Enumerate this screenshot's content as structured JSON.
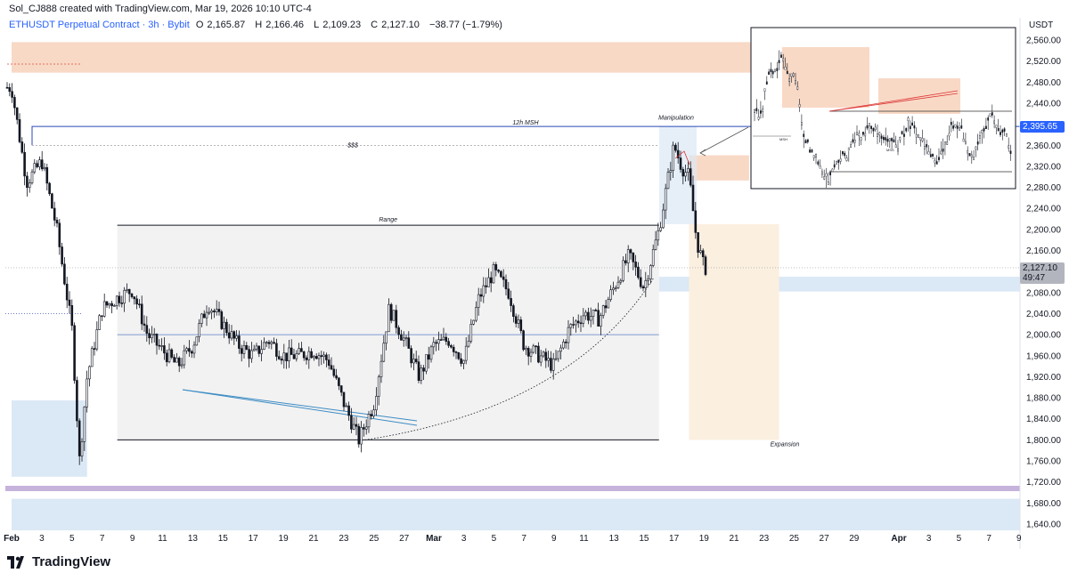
{
  "header": {
    "creator": "Sol_CJ888 created with TradingView.com, Mar 19, 2026 10:10 UTC-4",
    "symbol": "ETHUSDT Perpetual Contract · 3h · Bybit",
    "open_label": "O",
    "open": "2,165.87",
    "high_label": "H",
    "high": "2,166.46",
    "low_label": "L",
    "low": "2,109.23",
    "close_label": "C",
    "close": "2,127.10",
    "change": "−38.77 (−1.79%)"
  },
  "axis": {
    "currency": "USDT",
    "current_price": "2,127.10",
    "countdown": "49:47",
    "msh_price": "2,395.65"
  },
  "brand": {
    "name": "TradingView"
  },
  "colors": {
    "candle": "#131722",
    "supply_zone": "#f8d9c6",
    "demand_zone": "#dbe8f5",
    "range_box": "#f2f2f2",
    "expansion_box": "#fbefdf",
    "msh_line": "#2948b5",
    "purple_band": "#c6b3dc",
    "trendline": "#3d8cc4"
  },
  "chart_data": {
    "type": "candlestick",
    "title": "ETHUSDT Perpetual Contract · 3h · Bybit",
    "y_unit": "USDT",
    "ylim": [
      1620,
      2580
    ],
    "y_ticks": [
      2560,
      2520,
      2480,
      2440,
      2400,
      2360,
      2320,
      2280,
      2240,
      2200,
      2160,
      2120,
      2080,
      2040,
      2000,
      1960,
      1920,
      1880,
      1840,
      1800,
      1760,
      1720,
      1680,
      1640
    ],
    "x_ticks": [
      "Feb",
      "3",
      "5",
      "7",
      "9",
      "11",
      "13",
      "15",
      "17",
      "19",
      "21",
      "23",
      "25",
      "27",
      "Mar",
      "3",
      "5",
      "7",
      "9",
      "11",
      "13",
      "15",
      "17",
      "19",
      "21",
      "23",
      "25",
      "27",
      "29",
      "Apr",
      "3",
      "5",
      "7",
      "9"
    ],
    "bold_x_ticks": [
      "Feb",
      "Mar",
      "Apr"
    ],
    "close_path": [
      [
        "Feb 1",
        2470
      ],
      [
        "Feb 2",
        2290
      ],
      [
        "Feb 3",
        2330
      ],
      [
        "Feb 4",
        2200
      ],
      [
        "Feb 5",
        2010
      ],
      [
        "Feb 5.5",
        1760
      ],
      [
        "Feb 6",
        1920
      ],
      [
        "Feb 7",
        2050
      ],
      [
        "Feb 8",
        2070
      ],
      [
        "Feb 9",
        2085
      ],
      [
        "Feb 10",
        2000
      ],
      [
        "Feb 11",
        1970
      ],
      [
        "Feb 12",
        1940
      ],
      [
        "Feb 13",
        1980
      ],
      [
        "Feb 14",
        2060
      ],
      [
        "Feb 15",
        2020
      ],
      [
        "Feb 16",
        1980
      ],
      [
        "Feb 17",
        1960
      ],
      [
        "Feb 18",
        1990
      ],
      [
        "Feb 19",
        1960
      ],
      [
        "Feb 20",
        1960
      ],
      [
        "Feb 21",
        1970
      ],
      [
        "Feb 22",
        1950
      ],
      [
        "Feb 23",
        1870
      ],
      [
        "Feb 24",
        1800
      ],
      [
        "Feb 25",
        1870
      ],
      [
        "Feb 26",
        2050
      ],
      [
        "Feb 27",
        1990
      ],
      [
        "Feb 28",
        1920
      ],
      [
        "Mar 1",
        1980
      ],
      [
        "Mar 2",
        1990
      ],
      [
        "Mar 3",
        1950
      ],
      [
        "Mar 4",
        2070
      ],
      [
        "Mar 5",
        2120
      ],
      [
        "Mar 6",
        2080
      ],
      [
        "Mar 7",
        1980
      ],
      [
        "Mar 8",
        1960
      ],
      [
        "Mar 9",
        1940
      ],
      [
        "Mar 10",
        2010
      ],
      [
        "Mar 11",
        2040
      ],
      [
        "Mar 12",
        2030
      ],
      [
        "Mar 13",
        2090
      ],
      [
        "Mar 14",
        2150
      ],
      [
        "Mar 15",
        2090
      ],
      [
        "Mar 16",
        2200
      ],
      [
        "Mar 17",
        2360
      ],
      [
        "Mar 17.5",
        2320
      ],
      [
        "Mar 18",
        2300
      ],
      [
        "Mar 18.5",
        2180
      ],
      [
        "Mar 19",
        2127.1
      ]
    ],
    "annotations": [
      {
        "label": "12h MSH",
        "price": 2395.65,
        "from": "Feb 2",
        "to": "Mar 19"
      },
      {
        "label": "$$$",
        "price": 2360,
        "from": "Feb 2",
        "to": "Mar 19"
      },
      {
        "label": "Range",
        "top": 2208,
        "bottom": 1800,
        "from": "Feb 8",
        "to": "Mar 16"
      },
      {
        "label": "Manipulation",
        "price": 2405,
        "at": "Mar 17"
      },
      {
        "label": "Expansion",
        "top": 2210,
        "bottom": 1800,
        "from": "Mar 18",
        "to": "Mar 24"
      },
      {
        "label": "Supply zone",
        "top": 2556,
        "bottom": 2498,
        "from": "Feb 1",
        "to": "Mar 23"
      },
      {
        "label": "Order block",
        "top": 2341,
        "bottom": 2293,
        "from": "Mar 18",
        "to": "Mar 22"
      },
      {
        "label": "Demand zone",
        "top": 1875,
        "bottom": 1730,
        "from": "Feb 1",
        "to": "Feb 6"
      },
      {
        "label": "FVG",
        "top": 2110,
        "bottom": 2082,
        "from": "Mar 16",
        "to": "Apr 9"
      },
      {
        "label": "Lower demand",
        "top": 1688,
        "bottom": 1628,
        "from": "Feb 1",
        "to": "Apr 9"
      }
    ],
    "grid": false,
    "legend": "none"
  },
  "inset": {
    "labels": [
      "MSH",
      "MSS"
    ]
  }
}
